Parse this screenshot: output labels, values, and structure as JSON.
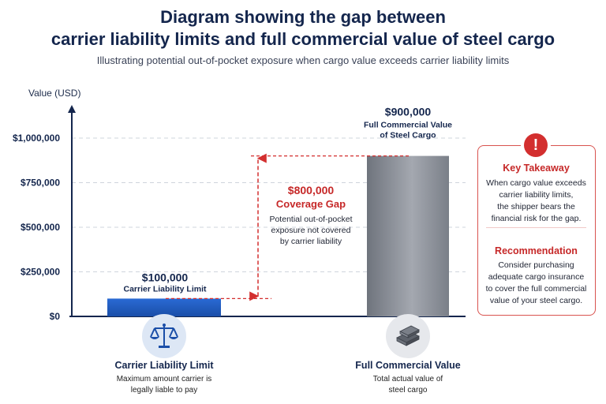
{
  "title_line1": "Diagram showing the gap between",
  "title_line2": "carrier liability limits and full commercial value of steel cargo",
  "subtitle": "Illustrating potential out-of-pocket exposure when cargo value exceeds carrier liability limits",
  "chart_data": {
    "type": "bar",
    "ylabel": "Value (USD)",
    "ylim": [
      0,
      1000000
    ],
    "y_ticks": [
      0,
      250000,
      500000,
      750000,
      1000000
    ],
    "y_tick_labels": [
      "$0",
      "$250,000",
      "$500,000",
      "$750,000",
      "$1,000,000"
    ],
    "grid": true,
    "categories": [
      "Carrier Liability Limit",
      "Full Commercial Value"
    ],
    "values": [
      100000,
      900000
    ],
    "bar_colors": [
      "#1f5bbf",
      "#8b8f98"
    ],
    "data_labels": [
      {
        "value": "$100,000",
        "caption": "Carrier Liability Limit"
      },
      {
        "value": "$900,000",
        "caption_line1": "Full Commercial Value",
        "caption_line2": "of Steel Cargo"
      }
    ],
    "gap_annotation": {
      "value": "$800,000",
      "label": "Coverage Gap",
      "desc_line1": "Potential out-of-pocket",
      "desc_line2": "exposure not covered",
      "desc_line3": "by carrier liability",
      "color": "#d32f2f"
    }
  },
  "categories_info": [
    {
      "label": "Carrier Liability Limit",
      "desc_line1": "Maximum amount carrier is",
      "desc_line2": "legally liable to pay",
      "icon": "scales-icon"
    },
    {
      "label": "Full Commercial Value",
      "desc_line1": "Total actual value of",
      "desc_line2": "steel cargo",
      "icon": "steel-beams-icon"
    }
  ],
  "takeaway": {
    "heading": "Key Takeaway",
    "lines": [
      "When cargo value exceeds",
      "carrier liability limits,",
      "the shipper bears the",
      "financial risk for the gap."
    ],
    "icon": "alert-icon",
    "icon_glyph": "!"
  },
  "recommendation": {
    "heading": "Recommendation",
    "lines": [
      "Consider purchasing",
      "adequate cargo insurance",
      "to cover the full commercial",
      "value of your steel cargo."
    ]
  }
}
